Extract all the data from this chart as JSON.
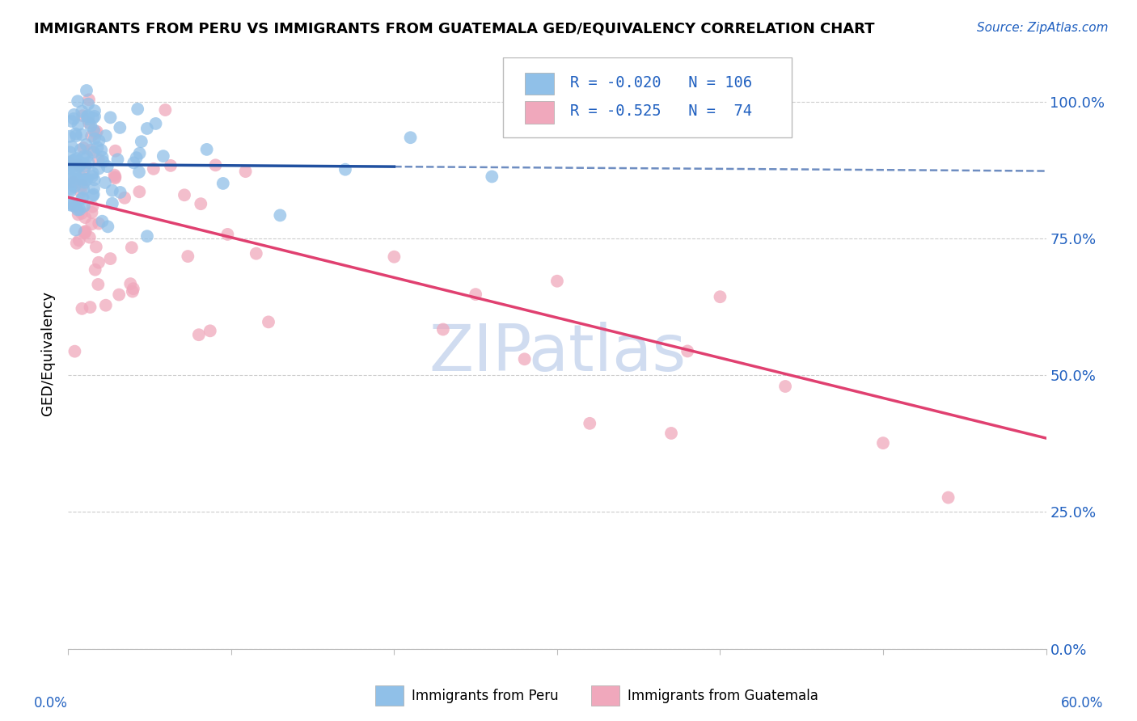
{
  "title": "IMMIGRANTS FROM PERU VS IMMIGRANTS FROM GUATEMALA GED/EQUIVALENCY CORRELATION CHART",
  "source": "Source: ZipAtlas.com",
  "ylabel": "GED/Equivalency",
  "yticks_labels": [
    "0.0%",
    "25.0%",
    "50.0%",
    "75.0%",
    "100.0%"
  ],
  "ytick_vals": [
    0.0,
    0.25,
    0.5,
    0.75,
    1.0
  ],
  "xlim": [
    0.0,
    0.6
  ],
  "ylim": [
    0.0,
    1.08
  ],
  "legend_label1": "Immigrants from Peru",
  "legend_label2": "Immigrants from Guatemala",
  "R1": "-0.020",
  "N1": "106",
  "R2": "-0.525",
  "N2": " 74",
  "color_peru": "#90C0E8",
  "color_guatemala": "#F0A8BC",
  "trend_color_peru": "#2050A0",
  "trend_color_guatemala": "#E04070",
  "watermark_color": "#D0DCF0",
  "background_color": "#FFFFFF",
  "peru_trend_y0": 0.885,
  "peru_trend_y1": 0.873,
  "guat_trend_y0": 0.825,
  "guat_trend_y1": 0.385
}
